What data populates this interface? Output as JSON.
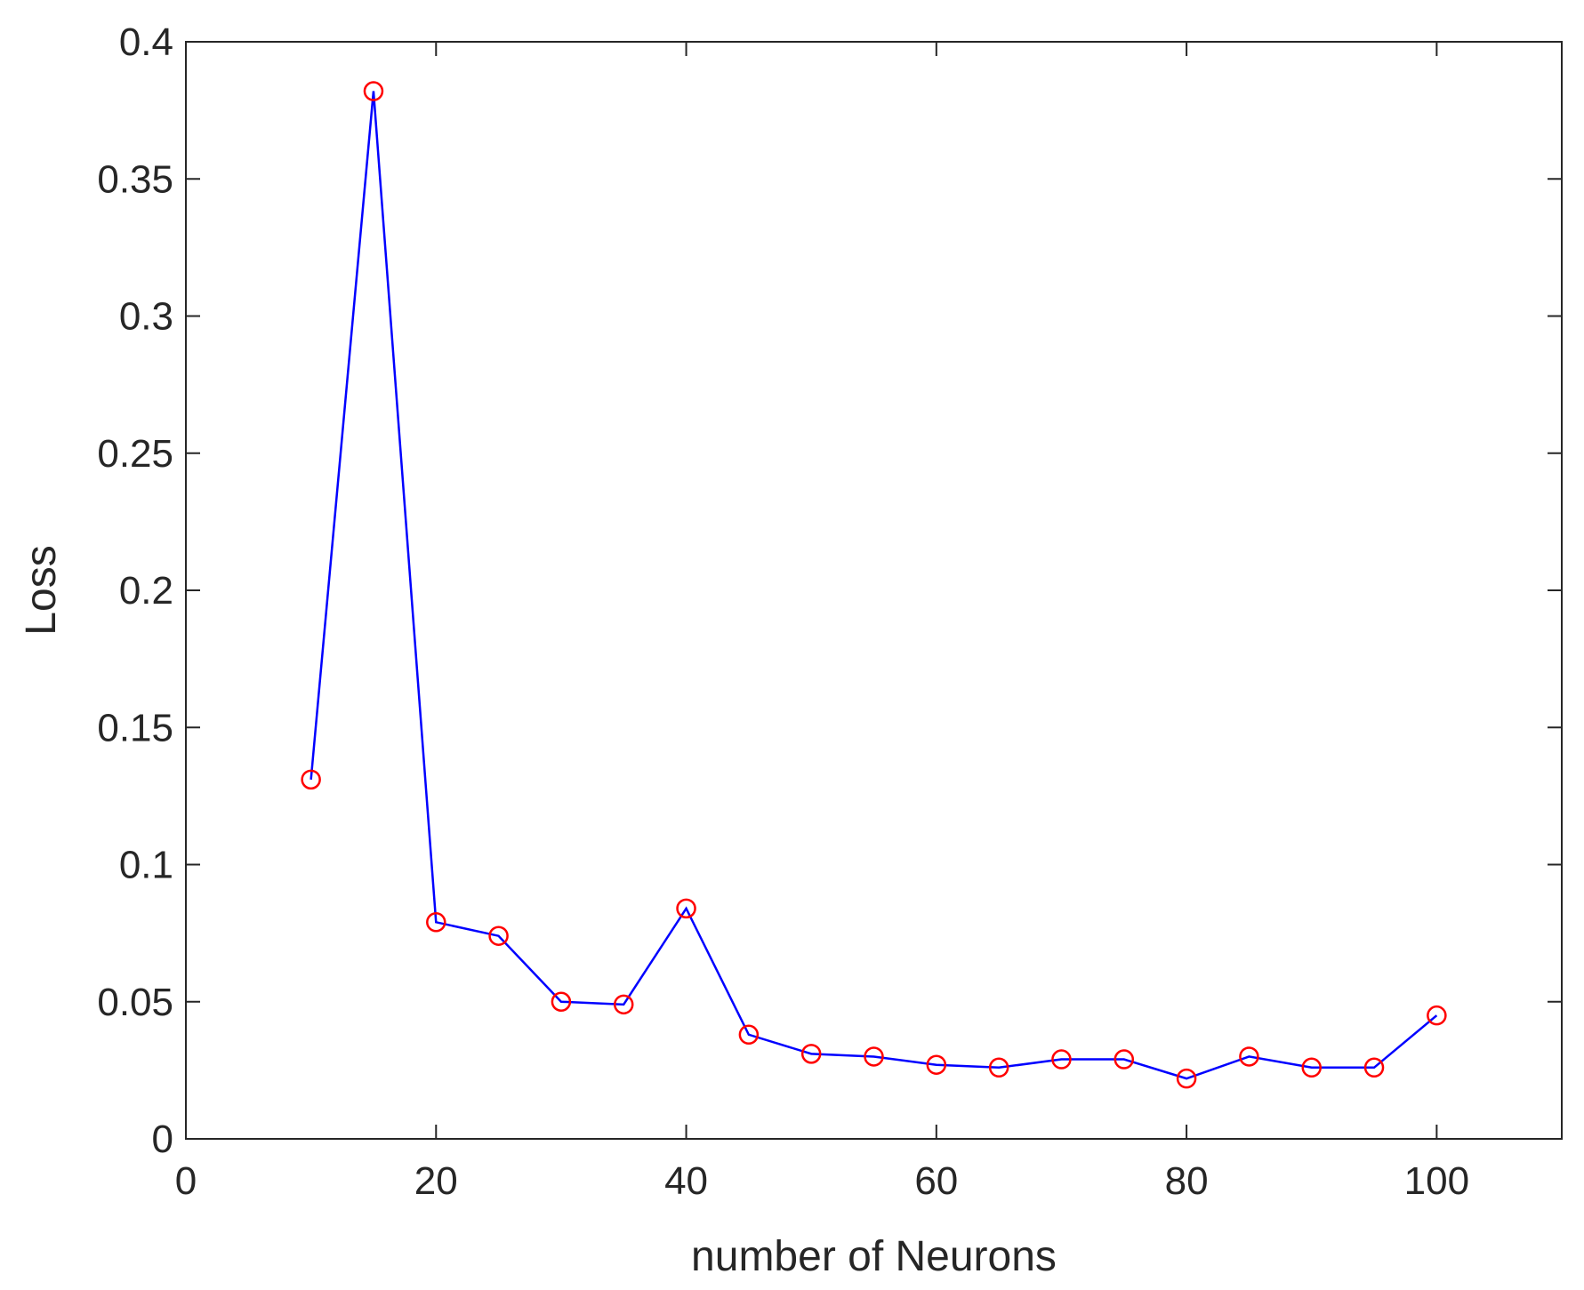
{
  "chart_data": {
    "type": "line",
    "title": "",
    "xlabel": "number of Neurons",
    "ylabel": "Loss",
    "xlim": [
      0,
      110
    ],
    "ylim": [
      0,
      0.4
    ],
    "xticks": [
      0,
      20,
      40,
      60,
      80,
      100
    ],
    "yticks": [
      0,
      0.05,
      0.1,
      0.15,
      0.2,
      0.25,
      0.3,
      0.35,
      0.4
    ],
    "xtick_labels": [
      "0",
      "20",
      "40",
      "60",
      "80",
      "100"
    ],
    "ytick_labels": [
      "0",
      "0.05",
      "0.1",
      "0.15",
      "0.2",
      "0.25",
      "0.3",
      "0.35",
      "0.4"
    ],
    "grid": false,
    "box": true,
    "line_color": "#0000ff",
    "marker": "circle",
    "marker_color": "#ff0000",
    "axes_color": "#262626",
    "series": [
      {
        "x": [
          10,
          15,
          20,
          25,
          30,
          35,
          40,
          45,
          50,
          55,
          60,
          65,
          70,
          75,
          80,
          85,
          90,
          95,
          100
        ],
        "y": [
          0.131,
          0.382,
          0.079,
          0.074,
          0.05,
          0.049,
          0.084,
          0.038,
          0.031,
          0.03,
          0.027,
          0.026,
          0.029,
          0.029,
          0.022,
          0.03,
          0.026,
          0.026,
          0.045
        ]
      }
    ]
  }
}
